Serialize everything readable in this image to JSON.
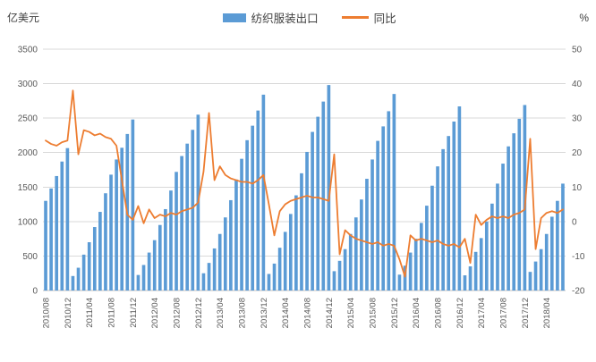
{
  "chart_data": {
    "type": "combo-bar-line",
    "left_axis": {
      "label": "亿美元",
      "min": 0,
      "max": 3500,
      "step": 500
    },
    "right_axis": {
      "label": "%",
      "min": -20,
      "max": 50,
      "step": 10
    },
    "grid": true,
    "legend_position": "top-center",
    "legend": [
      {
        "label": "纺织服装出口",
        "type": "bar",
        "color": "#5B9BD5"
      },
      {
        "label": "同比",
        "type": "line",
        "color": "#ED7D31"
      }
    ],
    "x_tick_every": 4,
    "x_tick_labels": [
      "2010/08",
      "2010/12",
      "2011/04",
      "2011/08",
      "2011/12",
      "2012/04",
      "2012/08",
      "2012/12",
      "2013/04",
      "2013/08",
      "2013/12",
      "2014/04",
      "2014/08",
      "2014/12",
      "2015/04",
      "2015/08",
      "2015/12",
      "2016/04",
      "2016/08",
      "2016/12",
      "2017/04",
      "2017/08",
      "2017/12",
      "2018/04"
    ],
    "series": [
      {
        "name": "纺织服装出口",
        "type": "bar",
        "axis": "left",
        "color": "#5B9BD5",
        "values": [
          1300,
          1480,
          1660,
          1870,
          2065,
          210,
          330,
          520,
          700,
          920,
          1140,
          1410,
          1680,
          1900,
          2070,
          2270,
          2480,
          225,
          370,
          550,
          730,
          950,
          1180,
          1450,
          1720,
          1950,
          2130,
          2330,
          2550,
          250,
          400,
          610,
          820,
          1060,
          1310,
          1610,
          1910,
          2180,
          2390,
          2610,
          2840,
          240,
          390,
          620,
          850,
          1110,
          1380,
          1700,
          2010,
          2300,
          2520,
          2740,
          2980,
          280,
          430,
          600,
          820,
          1060,
          1320,
          1620,
          1900,
          2170,
          2380,
          2600,
          2850,
          230,
          360,
          550,
          750,
          980,
          1230,
          1520,
          1800,
          2050,
          2240,
          2450,
          2670,
          220,
          350,
          560,
          760,
          1000,
          1260,
          1550,
          1840,
          2090,
          2280,
          2490,
          2690,
          270,
          420,
          600,
          820,
          1070,
          1300,
          1550
        ]
      },
      {
        "name": "同比",
        "type": "line",
        "axis": "right",
        "color": "#ED7D31",
        "values": [
          23.5,
          22.5,
          22.0,
          23.0,
          23.5,
          38.0,
          19.5,
          26.5,
          26.0,
          25.0,
          25.5,
          24.5,
          24.0,
          22.0,
          12.0,
          2.0,
          0.5,
          4.5,
          -0.5,
          3.5,
          1.0,
          2.0,
          1.5,
          2.5,
          2.0,
          3.0,
          3.5,
          4.0,
          5.5,
          14.5,
          31.5,
          12.0,
          16.0,
          13.5,
          12.5,
          12.0,
          11.5,
          11.5,
          11.0,
          12.0,
          13.5,
          5.0,
          -4.0,
          3.0,
          5.0,
          6.0,
          6.5,
          7.0,
          7.5,
          7.0,
          7.0,
          6.5,
          6.0,
          19.5,
          -9.5,
          -2.5,
          -4.0,
          -5.0,
          -5.5,
          -6.0,
          -6.5,
          -6.0,
          -7.0,
          -6.5,
          -7.0,
          -11.0,
          -16.0,
          -4.0,
          -5.5,
          -5.0,
          -5.5,
          -6.0,
          -5.5,
          -6.5,
          -7.0,
          -6.5,
          -7.5,
          -5.0,
          -12.0,
          2.0,
          -1.0,
          0.5,
          1.5,
          1.0,
          1.5,
          1.0,
          2.0,
          2.5,
          3.5,
          24.0,
          -8.0,
          1.0,
          2.5,
          3.0,
          2.5,
          3.5
        ]
      }
    ],
    "colors": {
      "bar": "#5B9BD5",
      "line": "#ED7D31",
      "grid": "#D9D9D9",
      "axis": "#BFBFBF",
      "tick_text": "#595959"
    }
  }
}
